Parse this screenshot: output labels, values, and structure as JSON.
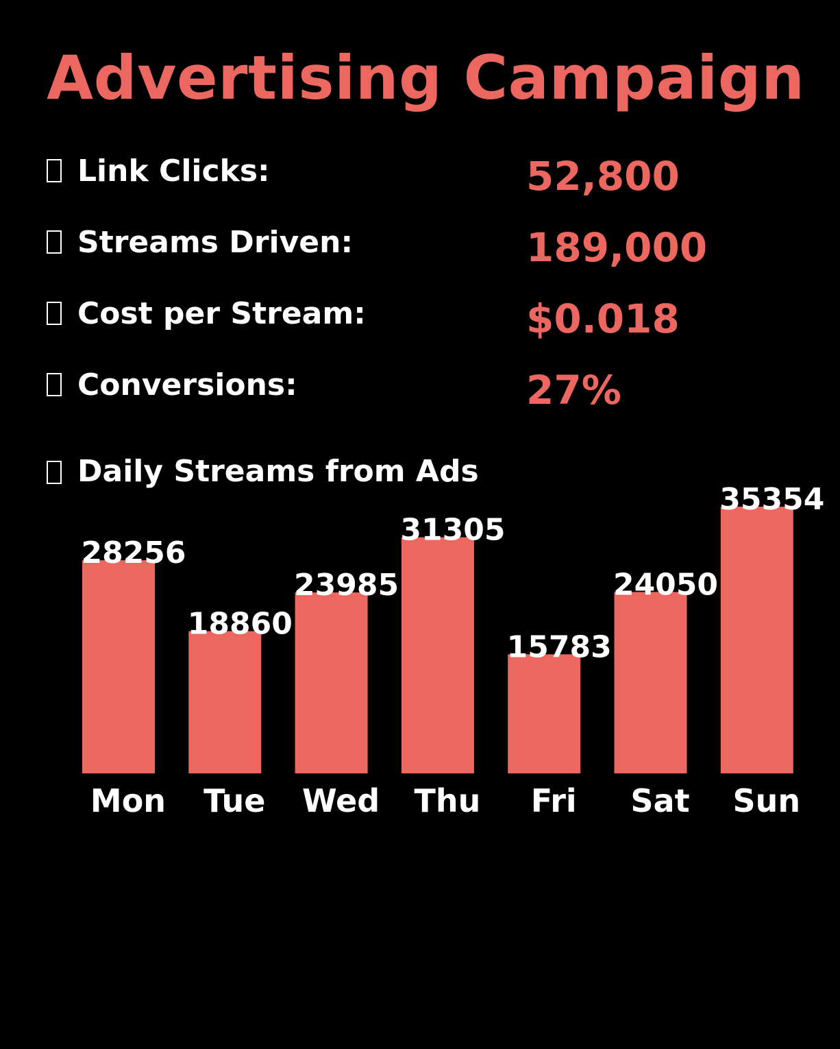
{
  "title": "Advertising Campaign",
  "colors": {
    "accent": "#EB6760",
    "background": "#000000",
    "text": "#FFFFFF"
  },
  "stats": [
    {
      "icon": "missing-glyph-icon",
      "label": "Link Clicks:",
      "value": "52,800"
    },
    {
      "icon": "missing-glyph-icon",
      "label": "Streams Driven:",
      "value": "189,000"
    },
    {
      "icon": "missing-glyph-icon",
      "label": "Cost per Stream:",
      "value": "$0.018"
    },
    {
      "icon": "missing-glyph-icon",
      "label": "Conversions:",
      "value": "27%"
    }
  ],
  "chart_heading": {
    "icon": "missing-glyph-icon",
    "label": "Daily Streams from Ads"
  },
  "chart_data": {
    "type": "bar",
    "categories": [
      "Mon",
      "Tue",
      "Wed",
      "Thu",
      "Fri",
      "Sat",
      "Sun"
    ],
    "values": [
      28256,
      18860,
      23985,
      31305,
      15783,
      24050,
      35354
    ],
    "title": "Daily Streams from Ads",
    "xlabel": "",
    "ylabel": "",
    "ylim": [
      0,
      35354
    ],
    "grid": false,
    "data_labels": true
  }
}
